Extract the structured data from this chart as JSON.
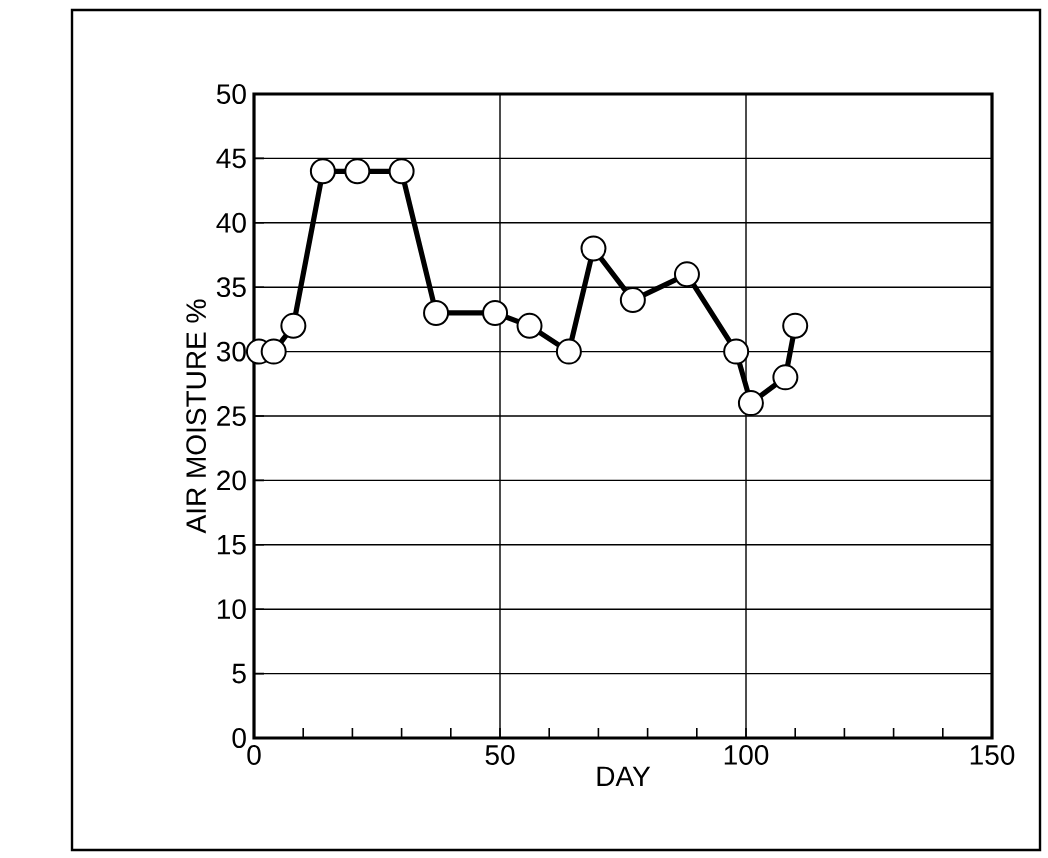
{
  "chart_data": {
    "type": "line",
    "xlabel": "DAY",
    "ylabel": "AIR MOISTURE %",
    "x": [
      1,
      4,
      8,
      14,
      21,
      30,
      37,
      49,
      56,
      64,
      69,
      77,
      88,
      98,
      101,
      108,
      110
    ],
    "series": [
      {
        "color": "#000000",
        "values": [
          30,
          30,
          32,
          44,
          44,
          44,
          33,
          33,
          32,
          30,
          38,
          34,
          36,
          30,
          26,
          28,
          32
        ]
      }
    ],
    "xlim": [
      0,
      150
    ],
    "xticks": [
      0,
      {
        "value": 10,
        "label": null
      },
      {
        "value": 20,
        "label": null
      },
      {
        "value": 30,
        "label": null
      },
      {
        "value": 40,
        "label": null
      },
      50,
      {
        "value": 60,
        "label": null
      },
      {
        "value": 70,
        "label": null
      },
      {
        "value": 80,
        "label": null
      },
      {
        "value": 90,
        "label": null
      },
      100,
      {
        "value": 110,
        "label": null
      },
      {
        "value": 120,
        "label": null
      },
      {
        "value": 130,
        "label": null
      },
      {
        "value": 140,
        "label": null
      },
      150
    ],
    "ylim": [
      0,
      50
    ],
    "yticks": [
      0,
      5,
      10,
      15,
      20,
      25,
      30,
      35,
      40,
      45,
      50
    ],
    "grid": true,
    "marker": "circle",
    "line_style": "solid"
  }
}
